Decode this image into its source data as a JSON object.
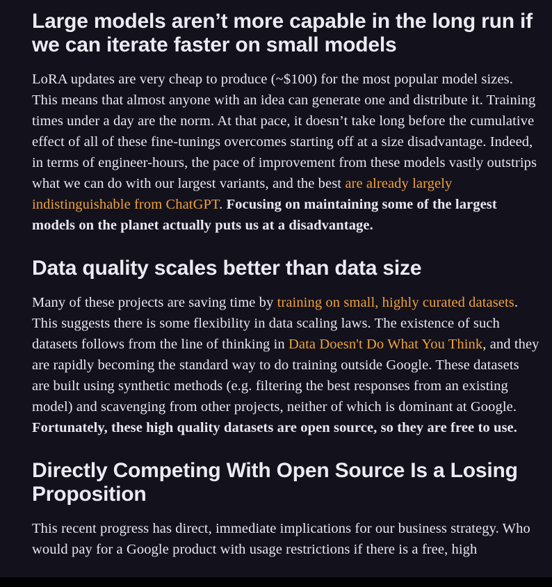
{
  "sections": [
    {
      "heading": "Large models aren’t more capable in the long run if we can iterate faster on small models",
      "p1": "LoRA updates are very cheap to produce (~$100) for the most popular model sizes. This means that almost anyone with an idea can generate one and distribute it. Training times under a day are the norm. At that pace, it doesn’t take long before the cumulative effect of all of these fine-tunings overcomes starting off at a size disadvantage. Indeed, in terms of engineer-hours, the pace of improvement from these models vastly outstrips what we can do with our largest variants, and the best ",
      "link1": "are already largely indistinguishable from ChatGPT",
      "p2": ". ",
      "bold": "Focusing on maintaining some of the largest models on the planet actually puts us at a disadvantage."
    },
    {
      "heading": "Data quality scales better than data size",
      "p1": "Many of these projects are saving time by ",
      "link1": "training on small, highly curated datasets",
      "p2": ". This suggests there is some flexibility in data scaling laws. The existence of such datasets follows from the line of thinking in ",
      "link2": "Data Doesn't Do What You Think",
      "p3": ", and they are rapidly becoming the standard way to do training outside Google. These datasets are built using synthetic methods (e.g. filtering the best responses from an existing model) and scavenging from other projects, neither of which is dominant at Google. ",
      "bold": "Fortunately, these high quality datasets are open source, so they are free to use."
    },
    {
      "heading": "Directly Competing With Open Source Is a Losing Proposition",
      "p1": "This recent progress has direct, immediate implications for our business strategy. Who would pay for a Google product with usage restrictions if there is a free, high"
    }
  ],
  "colors": {
    "background": "#13111c",
    "text": "#e9e7ef",
    "link": "#f0a23c"
  }
}
